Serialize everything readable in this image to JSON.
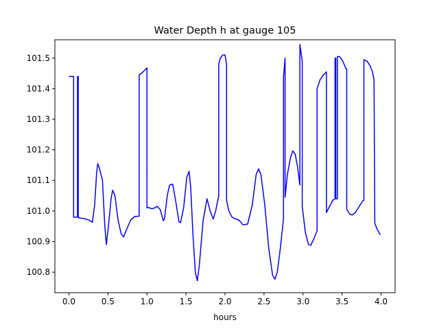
{
  "chart_data": {
    "type": "line",
    "title": "Water Depth h at gauge 105",
    "xlabel": "hours",
    "ylabel": "",
    "xlim": [
      -0.18,
      4.18
    ],
    "ylim": [
      100.733,
      101.56
    ],
    "xticks": [
      0.0,
      0.5,
      1.0,
      1.5,
      2.0,
      2.5,
      3.0,
      3.5,
      4.0
    ],
    "xtick_labels": [
      "0.0",
      "0.5",
      "1.0",
      "1.5",
      "2.0",
      "2.5",
      "3.0",
      "3.5",
      "4.0"
    ],
    "yticks": [
      100.8,
      100.9,
      101.0,
      101.1,
      101.2,
      101.3,
      101.4,
      101.5
    ],
    "ytick_labels": [
      "100.8",
      "100.9",
      "101.0",
      "101.1",
      "101.2",
      "101.3",
      "101.4",
      "101.5"
    ],
    "grid": false,
    "legend": "none",
    "series": [
      {
        "color": "#0000ff",
        "points": [
          [
            0.0,
            101.44
          ],
          [
            0.06,
            101.44
          ],
          [
            0.06,
            100.98
          ],
          [
            0.11,
            100.98
          ],
          [
            0.11,
            101.44
          ],
          [
            0.12,
            101.44
          ],
          [
            0.12,
            100.978
          ],
          [
            0.2,
            100.975
          ],
          [
            0.26,
            100.97
          ],
          [
            0.3,
            100.963
          ],
          [
            0.33,
            101.02
          ],
          [
            0.355,
            101.125
          ],
          [
            0.37,
            101.155
          ],
          [
            0.39,
            101.14
          ],
          [
            0.43,
            101.1
          ],
          [
            0.46,
            100.95
          ],
          [
            0.48,
            100.89
          ],
          [
            0.51,
            100.96
          ],
          [
            0.54,
            101.04
          ],
          [
            0.56,
            101.068
          ],
          [
            0.59,
            101.05
          ],
          [
            0.63,
            100.97
          ],
          [
            0.67,
            100.925
          ],
          [
            0.7,
            100.915
          ],
          [
            0.74,
            100.94
          ],
          [
            0.79,
            100.97
          ],
          [
            0.84,
            100.982
          ],
          [
            0.89,
            100.983
          ],
          [
            0.9,
            100.983
          ],
          [
            0.9,
            101.445
          ],
          [
            0.93,
            101.45
          ],
          [
            0.97,
            101.46
          ],
          [
            1.0,
            101.468
          ],
          [
            1.0,
            101.01
          ],
          [
            1.02,
            101.012
          ],
          [
            1.05,
            101.008
          ],
          [
            1.08,
            101.008
          ],
          [
            1.13,
            101.015
          ],
          [
            1.17,
            101.005
          ],
          [
            1.21,
            100.968
          ],
          [
            1.225,
            100.975
          ],
          [
            1.26,
            101.05
          ],
          [
            1.29,
            101.085
          ],
          [
            1.33,
            101.088
          ],
          [
            1.37,
            101.03
          ],
          [
            1.41,
            100.965
          ],
          [
            1.43,
            100.962
          ],
          [
            1.47,
            101.01
          ],
          [
            1.51,
            101.11
          ],
          [
            1.54,
            101.13
          ],
          [
            1.56,
            101.08
          ],
          [
            1.59,
            100.92
          ],
          [
            1.62,
            100.8
          ],
          [
            1.645,
            100.772
          ],
          [
            1.67,
            100.82
          ],
          [
            1.72,
            100.97
          ],
          [
            1.77,
            101.04
          ],
          [
            1.81,
            101.0
          ],
          [
            1.85,
            100.974
          ],
          [
            1.88,
            101.0
          ],
          [
            1.92,
            101.05
          ],
          [
            1.92,
            101.48
          ],
          [
            1.94,
            101.5
          ],
          [
            1.97,
            101.51
          ],
          [
            2.0,
            101.51
          ],
          [
            2.02,
            101.48
          ],
          [
            2.02,
            101.035
          ],
          [
            2.05,
            101.0
          ],
          [
            2.09,
            100.98
          ],
          [
            2.13,
            100.975
          ],
          [
            2.18,
            100.97
          ],
          [
            2.23,
            100.955
          ],
          [
            2.29,
            100.957
          ],
          [
            2.35,
            101.02
          ],
          [
            2.4,
            101.12
          ],
          [
            2.43,
            101.138
          ],
          [
            2.46,
            101.12
          ],
          [
            2.51,
            101.02
          ],
          [
            2.56,
            100.88
          ],
          [
            2.61,
            100.79
          ],
          [
            2.64,
            100.777
          ],
          [
            2.67,
            100.8
          ],
          [
            2.71,
            100.88
          ],
          [
            2.75,
            100.975
          ],
          [
            2.75,
            101.44
          ],
          [
            2.77,
            101.5
          ],
          [
            2.77,
            101.045
          ],
          [
            2.8,
            101.12
          ],
          [
            2.84,
            101.175
          ],
          [
            2.87,
            101.197
          ],
          [
            2.9,
            101.185
          ],
          [
            2.93,
            101.145
          ],
          [
            2.96,
            101.085
          ],
          [
            2.96,
            101.545
          ],
          [
            2.99,
            101.49
          ],
          [
            2.99,
            101.015
          ],
          [
            3.03,
            100.93
          ],
          [
            3.07,
            100.89
          ],
          [
            3.1,
            100.888
          ],
          [
            3.14,
            100.91
          ],
          [
            3.18,
            100.935
          ],
          [
            3.18,
            101.4
          ],
          [
            3.22,
            101.43
          ],
          [
            3.26,
            101.445
          ],
          [
            3.3,
            101.455
          ],
          [
            3.3,
            100.995
          ],
          [
            3.34,
            101.015
          ],
          [
            3.38,
            101.035
          ],
          [
            3.41,
            101.04
          ],
          [
            3.41,
            101.5
          ],
          [
            3.42,
            101.5
          ],
          [
            3.42,
            101.04
          ],
          [
            3.44,
            101.04
          ],
          [
            3.44,
            101.505
          ],
          [
            3.47,
            101.505
          ],
          [
            3.51,
            101.49
          ],
          [
            3.55,
            101.465
          ],
          [
            3.56,
            101.465
          ],
          [
            3.56,
            101.005
          ],
          [
            3.6,
            100.99
          ],
          [
            3.63,
            100.987
          ],
          [
            3.67,
            100.995
          ],
          [
            3.72,
            101.015
          ],
          [
            3.77,
            101.035
          ],
          [
            3.78,
            101.035
          ],
          [
            3.78,
            101.495
          ],
          [
            3.82,
            101.49
          ],
          [
            3.86,
            101.475
          ],
          [
            3.89,
            101.455
          ],
          [
            3.91,
            101.43
          ],
          [
            3.92,
            100.96
          ],
          [
            3.95,
            100.94
          ],
          [
            3.99,
            100.922
          ]
        ]
      }
    ]
  }
}
